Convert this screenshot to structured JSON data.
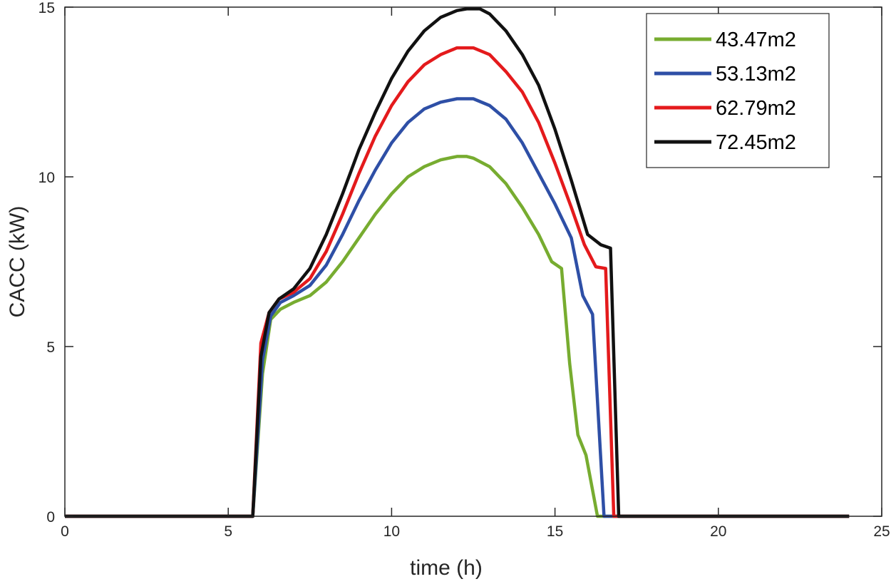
{
  "chart_data": {
    "type": "line",
    "title": "",
    "xlabel": "time (h)",
    "ylabel": "CACC (kW)",
    "xlim": [
      0,
      25
    ],
    "ylim": [
      0,
      15
    ],
    "xticks": [
      0,
      5,
      10,
      15,
      20,
      25
    ],
    "yticks": [
      0,
      5,
      10,
      15
    ],
    "grid": false,
    "legend_position": "top-right",
    "series": [
      {
        "name": "43.47m2",
        "color": "#77ac30",
        "x": [
          0,
          5.75,
          6.05,
          6.3,
          6.6,
          7,
          7.5,
          8,
          8.5,
          9,
          9.5,
          10,
          10.5,
          11,
          11.5,
          12,
          12.3,
          12.5,
          13,
          13.5,
          14,
          14.5,
          14.9,
          15.2,
          15.45,
          15.7,
          15.95,
          16.3,
          17,
          20,
          24
        ],
        "y": [
          0,
          0,
          4.2,
          5.8,
          6.1,
          6.3,
          6.5,
          6.9,
          7.5,
          8.2,
          8.9,
          9.5,
          10.0,
          10.3,
          10.5,
          10.6,
          10.6,
          10.55,
          10.3,
          9.8,
          9.1,
          8.3,
          7.5,
          7.3,
          4.5,
          2.4,
          1.8,
          0,
          0,
          0,
          0
        ]
      },
      {
        "name": "53.13m2",
        "color": "#2e4fa6",
        "x": [
          0,
          5.75,
          6.05,
          6.3,
          6.6,
          7,
          7.5,
          8,
          8.5,
          9,
          9.5,
          10,
          10.5,
          11,
          11.5,
          12,
          12.3,
          12.5,
          13,
          13.5,
          14,
          14.5,
          15,
          15.5,
          15.85,
          16.15,
          16.5,
          17,
          20,
          24
        ],
        "y": [
          0,
          0,
          4.6,
          5.9,
          6.3,
          6.5,
          6.8,
          7.4,
          8.3,
          9.3,
          10.2,
          11.0,
          11.6,
          12.0,
          12.2,
          12.3,
          12.3,
          12.3,
          12.1,
          11.7,
          11.0,
          10.1,
          9.2,
          8.2,
          6.5,
          5.95,
          0,
          0,
          0,
          0
        ]
      },
      {
        "name": "62.79m2",
        "color": "#e41a1c",
        "x": [
          0,
          5.75,
          6.0,
          6.25,
          6.55,
          7,
          7.5,
          8,
          8.5,
          9,
          9.5,
          10,
          10.5,
          11,
          11.5,
          12,
          12.3,
          12.5,
          13,
          13.5,
          14,
          14.5,
          15,
          15.5,
          15.9,
          16.25,
          16.55,
          16.8,
          17.2,
          20,
          24
        ],
        "y": [
          0,
          0,
          5.1,
          6.0,
          6.4,
          6.6,
          7.0,
          7.8,
          8.9,
          10.1,
          11.2,
          12.1,
          12.8,
          13.3,
          13.6,
          13.8,
          13.8,
          13.8,
          13.6,
          13.1,
          12.5,
          11.6,
          10.4,
          9.1,
          8.0,
          7.35,
          7.3,
          0,
          0,
          0,
          0
        ]
      },
      {
        "name": "72.45m2",
        "color": "#111111",
        "x": [
          0,
          5.75,
          6.0,
          6.25,
          6.55,
          7,
          7.5,
          8,
          8.5,
          9,
          9.5,
          10,
          10.5,
          11,
          11.5,
          12,
          12.3,
          12.5,
          12.7,
          13,
          13.5,
          14,
          14.5,
          15,
          15.5,
          16.0,
          16.4,
          16.7,
          16.95,
          17.05,
          17.5,
          20,
          24
        ],
        "y": [
          0,
          0,
          4.7,
          6.0,
          6.4,
          6.7,
          7.3,
          8.3,
          9.5,
          10.8,
          11.9,
          12.9,
          13.7,
          14.3,
          14.7,
          14.9,
          14.95,
          14.95,
          14.95,
          14.8,
          14.3,
          13.6,
          12.7,
          11.4,
          9.9,
          8.3,
          8.0,
          7.9,
          0,
          0,
          0,
          0,
          0
        ]
      }
    ]
  }
}
